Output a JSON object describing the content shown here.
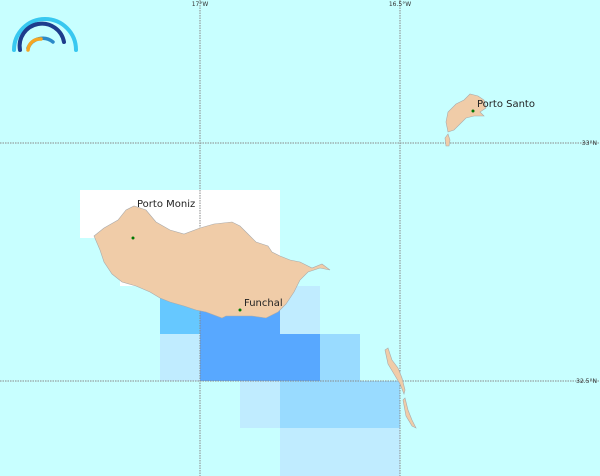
{
  "map": {
    "colors": {
      "sea": "#c8ffff",
      "land": "#f0cca8",
      "coast": "#999999",
      "no_data": "#ffffff",
      "level_1": "#c0ecff",
      "level_2": "#99dbff",
      "level_3": "#66c8ff",
      "level_4": "#58a8ff",
      "city_dot": "#007700"
    },
    "longitude_labels": [
      "17°W",
      "16.5°W"
    ],
    "latitude_labels": [
      "33°N",
      "32.5°N"
    ],
    "places": [
      {
        "name": "Porto Santo"
      },
      {
        "name": "Porto Moniz"
      },
      {
        "name": "Funchal"
      }
    ],
    "logo": {
      "icon": "rainbow-arcs-logo"
    }
  }
}
